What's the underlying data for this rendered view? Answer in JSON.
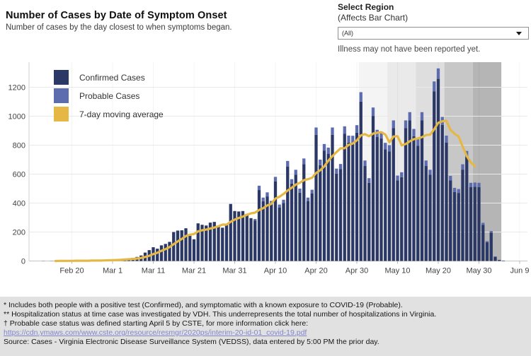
{
  "header": {
    "title": "Number of Cases by Date of Symptom Onset",
    "subtitle": "Number of cases by the day closest to when symptoms began."
  },
  "region_selector": {
    "label": "Select Region",
    "sublabel": "(Affects Bar Chart)",
    "selected_value": "(All)",
    "note": "Illness may not have been reported yet."
  },
  "legend": [
    {
      "label": "Confirmed Cases",
      "color": "#2b3866"
    },
    {
      "label": "Probable Cases",
      "color": "#5c6cae"
    },
    {
      "label": "7-day moving average",
      "color": "#e5b845"
    }
  ],
  "footer": {
    "line1": "* Includes both people with a positive test (Confirmed), and symptomatic with a known exposure to COVID-19 (Probable).",
    "line2": "** Hospitalization status at time case was investigated by VDH. This underrepresents the total number of hospitalizations in Virginia.",
    "line3": "† Probable case status was defined starting April 5 by CSTE, for more information click here:",
    "link": "https://cdn.ymaws.com/www.cste.org/resource/resmgr/2020ps/interim-20-id-01_covid-19.pdf",
    "line5": "Source:  Cases - Virginia Electronic Disease Surveillance System (VEDSS), data entered by 5:00 PM the prior day."
  },
  "chart_data": {
    "type": "bar",
    "title": "Number of Cases by Date of Symptom Onset",
    "xlabel": "",
    "ylabel": "",
    "ylim": [
      0,
      1375
    ],
    "yticks": [
      0,
      200,
      400,
      600,
      800,
      1000,
      1200
    ],
    "grid": true,
    "legend_position": "top-left",
    "x_ticks": [
      {
        "label": "Feb 20",
        "index": 10
      },
      {
        "label": "Mar 1",
        "index": 20
      },
      {
        "label": "Mar 11",
        "index": 30
      },
      {
        "label": "Mar 21",
        "index": 40
      },
      {
        "label": "Mar 31",
        "index": 50
      },
      {
        "label": "Apr 10",
        "index": 60
      },
      {
        "label": "Apr 20",
        "index": 70
      },
      {
        "label": "Apr 30",
        "index": 80
      },
      {
        "label": "May 10",
        "index": 90
      },
      {
        "label": "May 20",
        "index": 100
      },
      {
        "label": "May 30",
        "index": 110
      },
      {
        "label": "Jun 9",
        "index": 120
      }
    ],
    "categories": [
      "Feb 10",
      "Feb 11",
      "Feb 12",
      "Feb 13",
      "Feb 14",
      "Feb 15",
      "Feb 16",
      "Feb 17",
      "Feb 18",
      "Feb 19",
      "Feb 20",
      "Feb 21",
      "Feb 22",
      "Feb 23",
      "Feb 24",
      "Feb 25",
      "Feb 26",
      "Feb 27",
      "Feb 28",
      "Feb 29",
      "Mar 1",
      "Mar 2",
      "Mar 3",
      "Mar 4",
      "Mar 5",
      "Mar 6",
      "Mar 7",
      "Mar 8",
      "Mar 9",
      "Mar 10",
      "Mar 11",
      "Mar 12",
      "Mar 13",
      "Mar 14",
      "Mar 15",
      "Mar 16",
      "Mar 17",
      "Mar 18",
      "Mar 19",
      "Mar 20",
      "Mar 21",
      "Mar 22",
      "Mar 23",
      "Mar 24",
      "Mar 25",
      "Mar 26",
      "Mar 27",
      "Mar 28",
      "Mar 29",
      "Mar 30",
      "Mar 31",
      "Apr 1",
      "Apr 2",
      "Apr 3",
      "Apr 4",
      "Apr 5",
      "Apr 6",
      "Apr 7",
      "Apr 8",
      "Apr 9",
      "Apr 10",
      "Apr 11",
      "Apr 12",
      "Apr 13",
      "Apr 14",
      "Apr 15",
      "Apr 16",
      "Apr 17",
      "Apr 18",
      "Apr 19",
      "Apr 20",
      "Apr 21",
      "Apr 22",
      "Apr 23",
      "Apr 24",
      "Apr 25",
      "Apr 26",
      "Apr 27",
      "Apr 28",
      "Apr 29",
      "Apr 30",
      "May 1",
      "May 2",
      "May 3",
      "May 4",
      "May 5",
      "May 6",
      "May 7",
      "May 8",
      "May 9",
      "May 10",
      "May 11",
      "May 12",
      "May 13",
      "May 14",
      "May 15",
      "May 16",
      "May 17",
      "May 18",
      "May 19",
      "May 20",
      "May 21",
      "May 22",
      "May 23",
      "May 24",
      "May 25",
      "May 26",
      "May 27",
      "May 28",
      "May 29",
      "May 30",
      "May 31",
      "Jun 1",
      "Jun 2",
      "Jun 3",
      "Jun 4",
      "Jun 5",
      "Jun 6",
      "Jun 7",
      "Jun 8"
    ],
    "series": [
      {
        "name": "Confirmed Cases",
        "type": "bar",
        "color": "#2b3866",
        "values": [
          0,
          0,
          0,
          1,
          0,
          1,
          1,
          1,
          2,
          2,
          2,
          2,
          3,
          3,
          3,
          4,
          4,
          5,
          6,
          8,
          10,
          12,
          14,
          16,
          18,
          22,
          28,
          38,
          58,
          75,
          95,
          85,
          108,
          118,
          132,
          200,
          210,
          212,
          226,
          174,
          150,
          260,
          250,
          245,
          265,
          270,
          240,
          230,
          255,
          394,
          345,
          342,
          345,
          325,
          296,
          280,
          490,
          413,
          446,
          393,
          549,
          370,
          401,
          653,
          535,
          595,
          472,
          668,
          414,
          466,
          872,
          662,
          763,
          741,
          872,
          603,
          634,
          878,
          818,
          817,
          886,
          1101,
          656,
          540,
          1002,
          856,
          846,
          771,
          756,
          917,
          557,
          579,
          917,
          972,
          862,
          795,
          972,
          656,
          595,
          1172,
          1258,
          940,
          818,
          556,
          477,
          470,
          631,
          718,
          510,
          512,
          510,
          249,
          129,
          196,
          29,
          7,
          3,
          0,
          0,
          0
        ]
      },
      {
        "name": "Probable Cases",
        "type": "bar",
        "color": "#5c6cae",
        "values": [
          0,
          0,
          0,
          0,
          0,
          0,
          0,
          0,
          0,
          0,
          0,
          0,
          0,
          0,
          0,
          0,
          0,
          0,
          0,
          0,
          0,
          0,
          0,
          0,
          0,
          0,
          0,
          0,
          0,
          0,
          0,
          0,
          0,
          0,
          0,
          0,
          0,
          0,
          0,
          0,
          0,
          0,
          0,
          0,
          0,
          0,
          0,
          0,
          0,
          0,
          0,
          0,
          0,
          0,
          0,
          10,
          30,
          25,
          28,
          22,
          32,
          20,
          22,
          38,
          30,
          35,
          28,
          40,
          24,
          26,
          50,
          38,
          45,
          42,
          50,
          35,
          36,
          52,
          48,
          48,
          52,
          65,
          38,
          32,
          58,
          50,
          48,
          45,
          44,
          54,
          33,
          34,
          54,
          56,
          50,
          46,
          56,
          38,
          35,
          68,
          72,
          55,
          48,
          32,
          28,
          27,
          37,
          42,
          30,
          30,
          30,
          15,
          8,
          11,
          2,
          1,
          0,
          0,
          0,
          0
        ]
      },
      {
        "name": "7-day moving average",
        "type": "line",
        "color": "#e5b845",
        "values": [
          null,
          null,
          null,
          null,
          null,
          null,
          0,
          1,
          1,
          1,
          1,
          2,
          2,
          2,
          2,
          3,
          3,
          3,
          4,
          5,
          6,
          7,
          8,
          10,
          12,
          14,
          17,
          21,
          28,
          36,
          48,
          57,
          70,
          82,
          96,
          116,
          135,
          152,
          172,
          182,
          186,
          205,
          212,
          217,
          224,
          231,
          240,
          251,
          251,
          271,
          286,
          297,
          307,
          319,
          329,
          334,
          352,
          365,
          384,
          394,
          431,
          444,
          463,
          487,
          506,
          528,
          540,
          558,
          565,
          575,
          608,
          627,
          653,
          693,
          724,
          752,
          778,
          779,
          802,
          811,
          833,
          868,
          876,
          862,
          880,
          886,
          890,
          873,
          820,
          860,
          862,
          799,
          808,
          827,
          841,
          847,
          855,
          870,
          872,
          910,
          954,
          965,
          969,
          906,
          879,
          860,
          790,
          725,
          680,
          655,
          null,
          null,
          null,
          null,
          null,
          null,
          null,
          null,
          null,
          null
        ]
      }
    ],
    "recency_bands": {
      "note": "Illness may not have been reported yet.",
      "week_start_indices": [
        81,
        88,
        95,
        102,
        109
      ],
      "width_days": 7,
      "colors": [
        "#f4f4f4",
        "#eaeaea",
        "#dedede",
        "#c7c7c7",
        "#b5b5b5"
      ]
    }
  }
}
